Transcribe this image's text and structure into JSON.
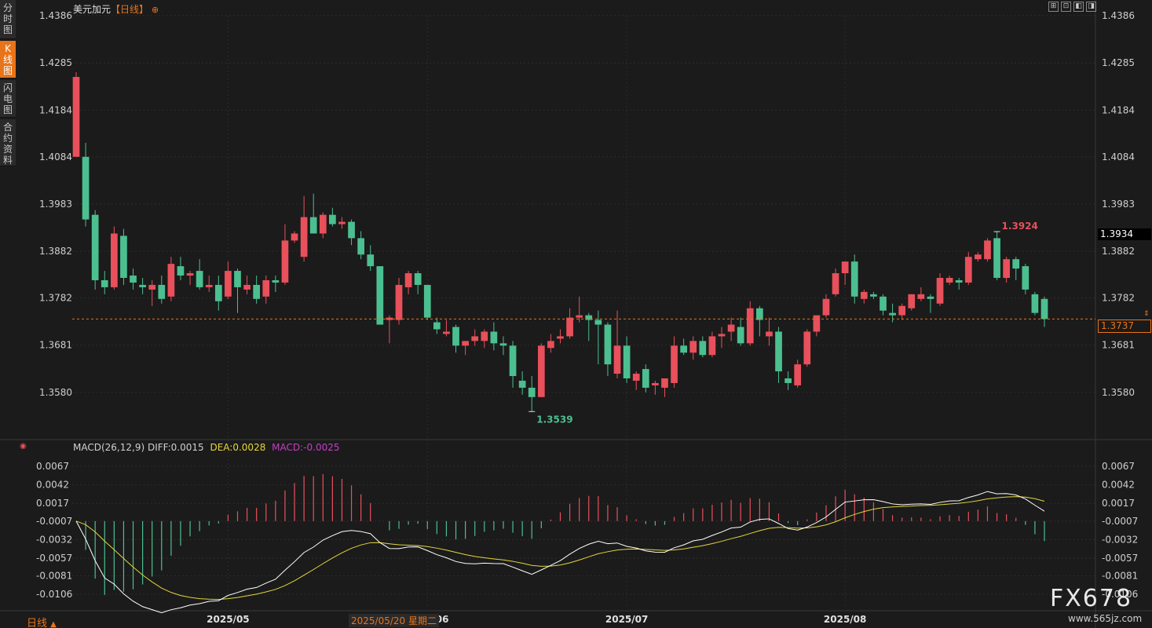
{
  "title": {
    "name": "美元加元",
    "period": "【日线】",
    "icon": "plus-circle-icon"
  },
  "side_tabs": [
    {
      "label": "分时图",
      "active": false
    },
    {
      "label": "K线图",
      "active": true
    },
    {
      "label": "闪电图",
      "active": false
    },
    {
      "label": "合约资料",
      "active": false
    }
  ],
  "toolbar": [
    "expand-icon",
    "fullscreen-icon",
    "prev-icon",
    "next-icon"
  ],
  "bottom_left": {
    "label": "日线",
    "icon": "triangle-up-icon"
  },
  "crosshair_date": "2025/05/20 星期二",
  "watermark": {
    "brand": "FX678",
    "url": "www.565jz.com"
  },
  "price_badge_top": "1.3934",
  "current_price_label": "1.3737",
  "colors": {
    "up": "#e8505b",
    "down": "#4cbf90",
    "diff": "#ffffff",
    "dea": "#e6d63b",
    "macd": "#c43fc4",
    "current": "#e8741a",
    "bg": "#1b1b1b"
  },
  "chart_data": [
    {
      "type": "candlestick",
      "ylim": [
        1.3479,
        1.4386
      ],
      "yticks": [
        "1.4386",
        "1.4285",
        "1.4184",
        "1.4084",
        "1.3983",
        "1.3882",
        "1.3782",
        "1.3681",
        "1.3580"
      ],
      "xticks": [
        {
          "label": "2025/05",
          "index": 16
        },
        {
          "label": "2025/06",
          "index": 37
        },
        {
          "label": "2025/07",
          "index": 58
        },
        {
          "label": "2025/08",
          "index": 81
        }
      ],
      "current": 1.3737,
      "annotations": [
        {
          "label": "1.3924",
          "value": 1.3924,
          "index": 97
        },
        {
          "label": "1.3539",
          "value": 1.3539,
          "index": 48
        }
      ],
      "ohlc": [
        [
          1.4084,
          1.4265,
          1.4084,
          1.4255
        ],
        [
          1.4084,
          1.4114,
          1.3935,
          1.395
        ],
        [
          1.396,
          1.397,
          1.38,
          1.382
        ],
        [
          1.382,
          1.384,
          1.379,
          1.3805
        ],
        [
          1.3805,
          1.3935,
          1.38,
          1.392
        ],
        [
          1.3915,
          1.393,
          1.381,
          1.3825
        ],
        [
          1.383,
          1.3845,
          1.38,
          1.3815
        ],
        [
          1.381,
          1.3825,
          1.379,
          1.3805
        ],
        [
          1.38,
          1.382,
          1.3765,
          1.381
        ],
        [
          1.381,
          1.383,
          1.377,
          1.378
        ],
        [
          1.3785,
          1.387,
          1.3775,
          1.3855
        ],
        [
          1.385,
          1.387,
          1.382,
          1.383
        ],
        [
          1.383,
          1.384,
          1.381,
          1.3835
        ],
        [
          1.384,
          1.3865,
          1.38,
          1.3805
        ],
        [
          1.3805,
          1.383,
          1.3795,
          1.381
        ],
        [
          1.381,
          1.383,
          1.3755,
          1.3775
        ],
        [
          1.3785,
          1.386,
          1.378,
          1.384
        ],
        [
          1.384,
          1.3845,
          1.375,
          1.3805
        ],
        [
          1.38,
          1.383,
          1.379,
          1.381
        ],
        [
          1.381,
          1.383,
          1.377,
          1.378
        ],
        [
          1.3785,
          1.383,
          1.377,
          1.382
        ],
        [
          1.382,
          1.383,
          1.3795,
          1.3815
        ],
        [
          1.3815,
          1.394,
          1.381,
          1.3905
        ],
        [
          1.3905,
          1.3925,
          1.39,
          1.392
        ],
        [
          1.387,
          1.4,
          1.386,
          1.3955
        ],
        [
          1.3955,
          1.4005,
          1.392,
          1.392
        ],
        [
          1.392,
          1.3965,
          1.391,
          1.396
        ],
        [
          1.396,
          1.3975,
          1.3935,
          1.394
        ],
        [
          1.394,
          1.3955,
          1.393,
          1.3945
        ],
        [
          1.3945,
          1.395,
          1.3895,
          1.391
        ],
        [
          1.391,
          1.3925,
          1.3865,
          1.3875
        ],
        [
          1.3875,
          1.3895,
          1.384,
          1.385
        ],
        [
          1.385,
          1.385,
          1.3725,
          1.3725
        ],
        [
          1.3735,
          1.3745,
          1.3685,
          1.374
        ],
        [
          1.3735,
          1.3825,
          1.3725,
          1.381
        ],
        [
          1.3805,
          1.384,
          1.379,
          1.3835
        ],
        [
          1.3835,
          1.384,
          1.379,
          1.381
        ],
        [
          1.381,
          1.381,
          1.3735,
          1.374
        ],
        [
          1.373,
          1.374,
          1.3705,
          1.3715
        ],
        [
          1.3705,
          1.3735,
          1.37,
          1.371
        ],
        [
          1.372,
          1.3725,
          1.3665,
          1.368
        ],
        [
          1.368,
          1.369,
          1.366,
          1.369
        ],
        [
          1.369,
          1.3715,
          1.368,
          1.37
        ],
        [
          1.369,
          1.3715,
          1.3675,
          1.371
        ],
        [
          1.371,
          1.373,
          1.367,
          1.3685
        ],
        [
          1.3685,
          1.37,
          1.366,
          1.368
        ],
        [
          1.368,
          1.369,
          1.359,
          1.3615
        ],
        [
          1.3605,
          1.3625,
          1.3575,
          1.359
        ],
        [
          1.359,
          1.3615,
          1.3539,
          1.357
        ],
        [
          1.357,
          1.3685,
          1.357,
          1.368
        ],
        [
          1.3675,
          1.3705,
          1.3665,
          1.369
        ],
        [
          1.3695,
          1.3715,
          1.3685,
          1.37
        ],
        [
          1.37,
          1.376,
          1.3695,
          1.374
        ],
        [
          1.374,
          1.3785,
          1.373,
          1.3745
        ],
        [
          1.3745,
          1.375,
          1.369,
          1.3735
        ],
        [
          1.3735,
          1.3755,
          1.364,
          1.3725
        ],
        [
          1.3725,
          1.373,
          1.3615,
          1.364
        ],
        [
          1.362,
          1.3755,
          1.361,
          1.368
        ],
        [
          1.368,
          1.37,
          1.36,
          1.361
        ],
        [
          1.3605,
          1.3625,
          1.3585,
          1.362
        ],
        [
          1.363,
          1.364,
          1.358,
          1.359
        ],
        [
          1.3595,
          1.3605,
          1.3575,
          1.36
        ],
        [
          1.359,
          1.361,
          1.357,
          1.361
        ],
        [
          1.36,
          1.37,
          1.359,
          1.368
        ],
        [
          1.368,
          1.3695,
          1.366,
          1.3665
        ],
        [
          1.3665,
          1.37,
          1.365,
          1.369
        ],
        [
          1.369,
          1.37,
          1.3655,
          1.366
        ],
        [
          1.366,
          1.371,
          1.3655,
          1.37
        ],
        [
          1.37,
          1.372,
          1.3675,
          1.3705
        ],
        [
          1.371,
          1.374,
          1.369,
          1.3725
        ],
        [
          1.372,
          1.374,
          1.368,
          1.3685
        ],
        [
          1.3685,
          1.3775,
          1.368,
          1.376
        ],
        [
          1.376,
          1.3765,
          1.37,
          1.3735
        ],
        [
          1.37,
          1.374,
          1.368,
          1.371
        ],
        [
          1.371,
          1.372,
          1.36,
          1.3625
        ],
        [
          1.361,
          1.3625,
          1.3585,
          1.36
        ],
        [
          1.3595,
          1.365,
          1.359,
          1.364
        ],
        [
          1.364,
          1.3715,
          1.3635,
          1.371
        ],
        [
          1.371,
          1.3745,
          1.37,
          1.3745
        ],
        [
          1.3745,
          1.379,
          1.374,
          1.378
        ],
        [
          1.379,
          1.3845,
          1.3785,
          1.3835
        ],
        [
          1.3835,
          1.386,
          1.381,
          1.386
        ],
        [
          1.386,
          1.3875,
          1.377,
          1.3785
        ],
        [
          1.378,
          1.38,
          1.377,
          1.3795
        ],
        [
          1.379,
          1.3795,
          1.378,
          1.3785
        ],
        [
          1.3785,
          1.379,
          1.3745,
          1.3755
        ],
        [
          1.375,
          1.377,
          1.373,
          1.3745
        ],
        [
          1.3745,
          1.377,
          1.3735,
          1.3765
        ],
        [
          1.376,
          1.379,
          1.3755,
          1.379
        ],
        [
          1.378,
          1.3805,
          1.3775,
          1.379
        ],
        [
          1.3785,
          1.379,
          1.375,
          1.378
        ],
        [
          1.377,
          1.3835,
          1.3765,
          1.3825
        ],
        [
          1.3815,
          1.383,
          1.381,
          1.3825
        ],
        [
          1.382,
          1.3825,
          1.38,
          1.3815
        ],
        [
          1.3815,
          1.388,
          1.381,
          1.387
        ],
        [
          1.3865,
          1.388,
          1.386,
          1.3875
        ],
        [
          1.3865,
          1.391,
          1.386,
          1.3905
        ],
        [
          1.391,
          1.3924,
          1.382,
          1.3825
        ],
        [
          1.3825,
          1.387,
          1.3815,
          1.3865
        ],
        [
          1.3865,
          1.387,
          1.382,
          1.3845
        ],
        [
          1.385,
          1.3855,
          1.379,
          1.38
        ],
        [
          1.379,
          1.3795,
          1.3745,
          1.375
        ],
        [
          1.378,
          1.3785,
          1.372,
          1.3737
        ]
      ]
    },
    {
      "type": "macd",
      "label": "MACD(26,12,9)",
      "diff_label": "DIFF:0.0015",
      "dea_label": "DEA:0.0028",
      "macd_label": "MACD:-0.0025",
      "ylim": [
        -0.0125,
        0.0082
      ],
      "yticks": [
        "0.0067",
        "0.0042",
        "0.0017",
        "-0.0007",
        "-0.0032",
        "-0.0057",
        "-0.0081",
        "-0.0106"
      ]
    }
  ]
}
